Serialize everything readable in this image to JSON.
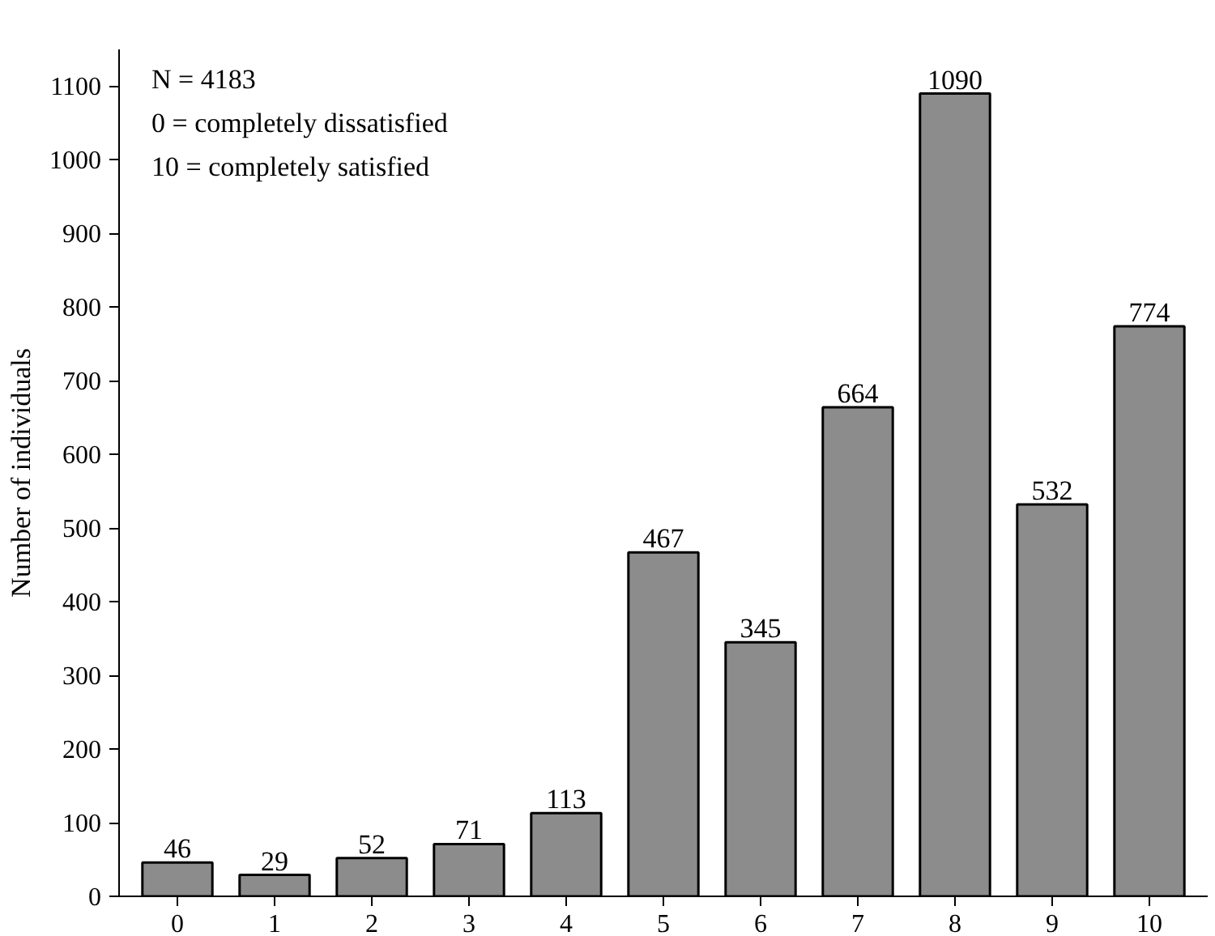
{
  "chart_data": {
    "type": "bar",
    "ylabel": "Number of individuals",
    "categories": [
      "0",
      "1",
      "2",
      "3",
      "4",
      "5",
      "6",
      "7",
      "8",
      "9",
      "10"
    ],
    "values": [
      46,
      29,
      52,
      71,
      113,
      467,
      345,
      664,
      1090,
      532,
      774
    ],
    "color": "#8c8c8c",
    "data_labels": true,
    "ylim": [
      0,
      1150
    ],
    "yticks": [
      0,
      100,
      200,
      300,
      400,
      500,
      600,
      700,
      800,
      900,
      1000,
      1100
    ],
    "grid": false,
    "annotations": [
      "N = 4183",
      "0 = completely dissatisfied",
      "10 = completely satisfied"
    ]
  }
}
